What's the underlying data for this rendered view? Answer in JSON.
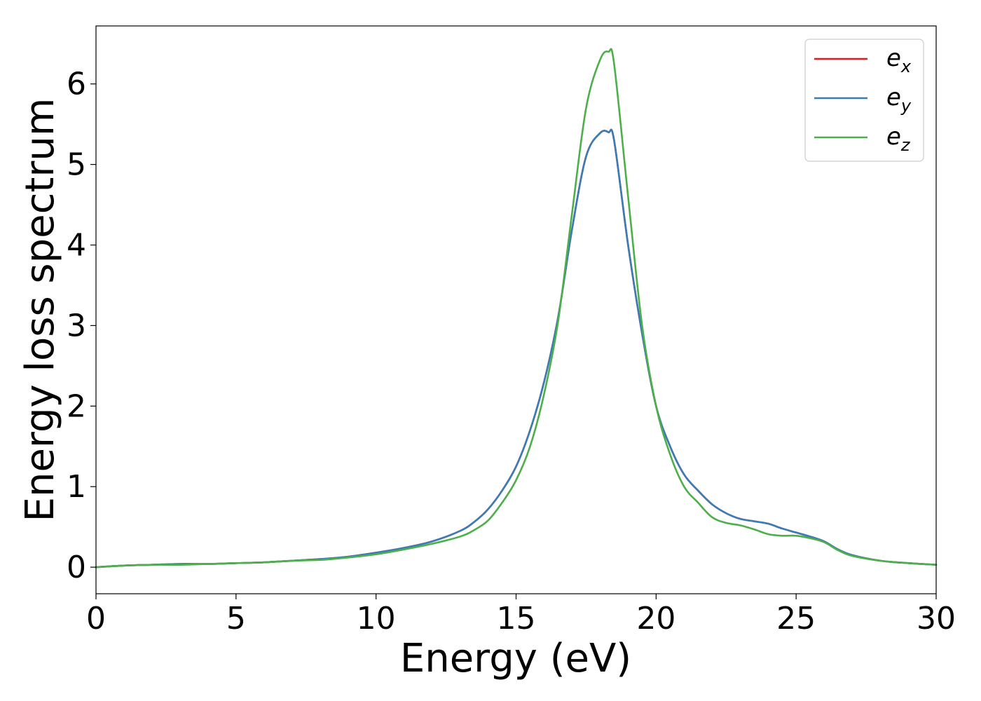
{
  "chart_data": {
    "type": "line",
    "xlabel": "Energy (eV)",
    "ylabel": "Energy loss spectrum",
    "xlim": [
      0,
      30
    ],
    "ylim": [
      -0.33,
      6.72
    ],
    "xticks": [
      0,
      5,
      10,
      15,
      20,
      25,
      30
    ],
    "yticks": [
      0,
      1,
      2,
      3,
      4,
      5,
      6
    ],
    "grid": false,
    "legend_position": "top-right",
    "x": [
      0,
      1,
      2,
      3,
      4,
      5,
      6,
      7,
      8,
      9,
      10,
      11,
      12,
      13,
      13.5,
      14,
      14.5,
      15,
      15.5,
      16,
      16.5,
      17,
      17.5,
      18,
      18.3,
      18.5,
      19,
      19.5,
      20,
      20.5,
      21,
      21.5,
      22,
      22.5,
      23,
      23.5,
      24,
      24.5,
      25,
      25.5,
      26,
      26.5,
      27,
      28,
      29,
      30
    ],
    "series": [
      {
        "name": "e",
        "subscript": "x",
        "color": "#e41a1c",
        "values": [
          0.0,
          0.02,
          0.03,
          0.04,
          0.04,
          0.05,
          0.06,
          0.08,
          0.1,
          0.13,
          0.18,
          0.24,
          0.32,
          0.45,
          0.56,
          0.72,
          0.95,
          1.25,
          1.7,
          2.3,
          3.1,
          4.2,
          5.1,
          5.39,
          5.4,
          5.3,
          4.0,
          2.9,
          2.0,
          1.5,
          1.15,
          0.95,
          0.78,
          0.67,
          0.6,
          0.57,
          0.54,
          0.48,
          0.43,
          0.38,
          0.32,
          0.22,
          0.15,
          0.08,
          0.05,
          0.03
        ]
      },
      {
        "name": "e",
        "subscript": "y",
        "color": "#377eb8",
        "values": [
          0.0,
          0.02,
          0.03,
          0.04,
          0.04,
          0.05,
          0.06,
          0.08,
          0.1,
          0.13,
          0.18,
          0.24,
          0.32,
          0.45,
          0.56,
          0.72,
          0.95,
          1.25,
          1.7,
          2.3,
          3.1,
          4.2,
          5.1,
          5.39,
          5.4,
          5.3,
          4.0,
          2.9,
          2.0,
          1.5,
          1.15,
          0.95,
          0.78,
          0.67,
          0.6,
          0.57,
          0.54,
          0.48,
          0.43,
          0.38,
          0.32,
          0.22,
          0.15,
          0.08,
          0.05,
          0.03
        ]
      },
      {
        "name": "e",
        "subscript": "z",
        "color": "#4daf4a",
        "values": [
          0.0,
          0.02,
          0.03,
          0.03,
          0.04,
          0.05,
          0.06,
          0.08,
          0.09,
          0.12,
          0.16,
          0.22,
          0.29,
          0.38,
          0.46,
          0.58,
          0.8,
          1.08,
          1.5,
          2.15,
          3.05,
          4.4,
          5.7,
          6.3,
          6.4,
          6.25,
          4.6,
          3.0,
          2.0,
          1.4,
          1.0,
          0.8,
          0.62,
          0.55,
          0.52,
          0.47,
          0.41,
          0.39,
          0.39,
          0.36,
          0.31,
          0.21,
          0.14,
          0.08,
          0.05,
          0.03
        ]
      }
    ]
  }
}
